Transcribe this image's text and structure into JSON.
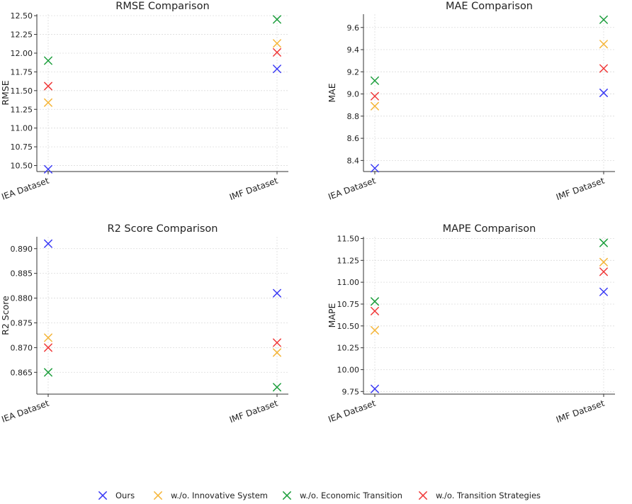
{
  "legend": [
    {
      "name": "Ours",
      "color": "#3b3bf5"
    },
    {
      "name": "w./o. Innovative System",
      "color": "#f5b63b"
    },
    {
      "name": "w./o. Economic Transition",
      "color": "#1c9e3c"
    },
    {
      "name": "w./o. Transition Strategies",
      "color": "#f03b3b"
    }
  ],
  "chart_data": [
    {
      "type": "scatter",
      "title": "RMSE Comparison",
      "xlabel": "",
      "ylabel": "RMSE",
      "categories": [
        "IEA Dataset",
        "IMF Dataset"
      ],
      "ylim": [
        10.42,
        12.52
      ],
      "yticks": [
        10.5,
        10.75,
        11.0,
        11.25,
        11.5,
        11.75,
        12.0,
        12.25,
        12.5
      ],
      "ytick_labels": [
        "10.50",
        "10.75",
        "11.00",
        "11.25",
        "11.50",
        "11.75",
        "12.00",
        "12.25",
        "12.50"
      ],
      "series": [
        {
          "name": "Ours",
          "values": [
            10.45,
            11.79
          ]
        },
        {
          "name": "w./o. Innovative System",
          "values": [
            11.34,
            12.13
          ]
        },
        {
          "name": "w./o. Economic Transition",
          "values": [
            11.9,
            12.45
          ]
        },
        {
          "name": "w./o. Transition Strategies",
          "values": [
            11.56,
            12.01
          ]
        }
      ]
    },
    {
      "type": "scatter",
      "title": "MAE Comparison",
      "xlabel": "",
      "ylabel": "MAE",
      "categories": [
        "IEA Dataset",
        "IMF Dataset"
      ],
      "ylim": [
        8.3,
        9.72
      ],
      "yticks": [
        8.4,
        8.6,
        8.8,
        9.0,
        9.2,
        9.4,
        9.6
      ],
      "ytick_labels": [
        "8.4",
        "8.6",
        "8.8",
        "9.0",
        "9.2",
        "9.4",
        "9.6"
      ],
      "series": [
        {
          "name": "Ours",
          "values": [
            8.33,
            9.01
          ]
        },
        {
          "name": "w./o. Innovative System",
          "values": [
            8.89,
            9.45
          ]
        },
        {
          "name": "w./o. Economic Transition",
          "values": [
            9.12,
            9.67
          ]
        },
        {
          "name": "w./o. Transition Strategies",
          "values": [
            8.98,
            9.23
          ]
        }
      ]
    },
    {
      "type": "scatter",
      "title": "R2 Score Comparison",
      "xlabel": "",
      "ylabel": "R2 Score",
      "categories": [
        "IEA Dataset",
        "IMF Dataset"
      ],
      "ylim": [
        0.8606,
        0.8924
      ],
      "yticks": [
        0.865,
        0.87,
        0.875,
        0.88,
        0.885,
        0.89
      ],
      "ytick_labels": [
        "0.865",
        "0.870",
        "0.875",
        "0.880",
        "0.885",
        "0.890"
      ],
      "series": [
        {
          "name": "Ours",
          "values": [
            0.891,
            0.881
          ]
        },
        {
          "name": "w./o. Innovative System",
          "values": [
            0.872,
            0.869
          ]
        },
        {
          "name": "w./o. Economic Transition",
          "values": [
            0.865,
            0.862
          ]
        },
        {
          "name": "w./o. Transition Strategies",
          "values": [
            0.87,
            0.871
          ]
        }
      ]
    },
    {
      "type": "scatter",
      "title": "MAPE Comparison",
      "xlabel": "",
      "ylabel": "MAPE",
      "categories": [
        "IEA Dataset",
        "IMF Dataset"
      ],
      "ylim": [
        9.72,
        11.52
      ],
      "yticks": [
        9.75,
        10.0,
        10.25,
        10.5,
        10.75,
        11.0,
        11.25,
        11.5
      ],
      "ytick_labels": [
        "9.75",
        "10.00",
        "10.25",
        "10.50",
        "10.75",
        "11.00",
        "11.25",
        "11.50"
      ],
      "series": [
        {
          "name": "Ours",
          "values": [
            9.78,
            10.89
          ]
        },
        {
          "name": "w./o. Innovative System",
          "values": [
            10.45,
            11.23
          ]
        },
        {
          "name": "w./o. Economic Transition",
          "values": [
            10.78,
            11.45
          ]
        },
        {
          "name": "w./o. Transition Strategies",
          "values": [
            10.67,
            11.12
          ]
        }
      ]
    }
  ]
}
